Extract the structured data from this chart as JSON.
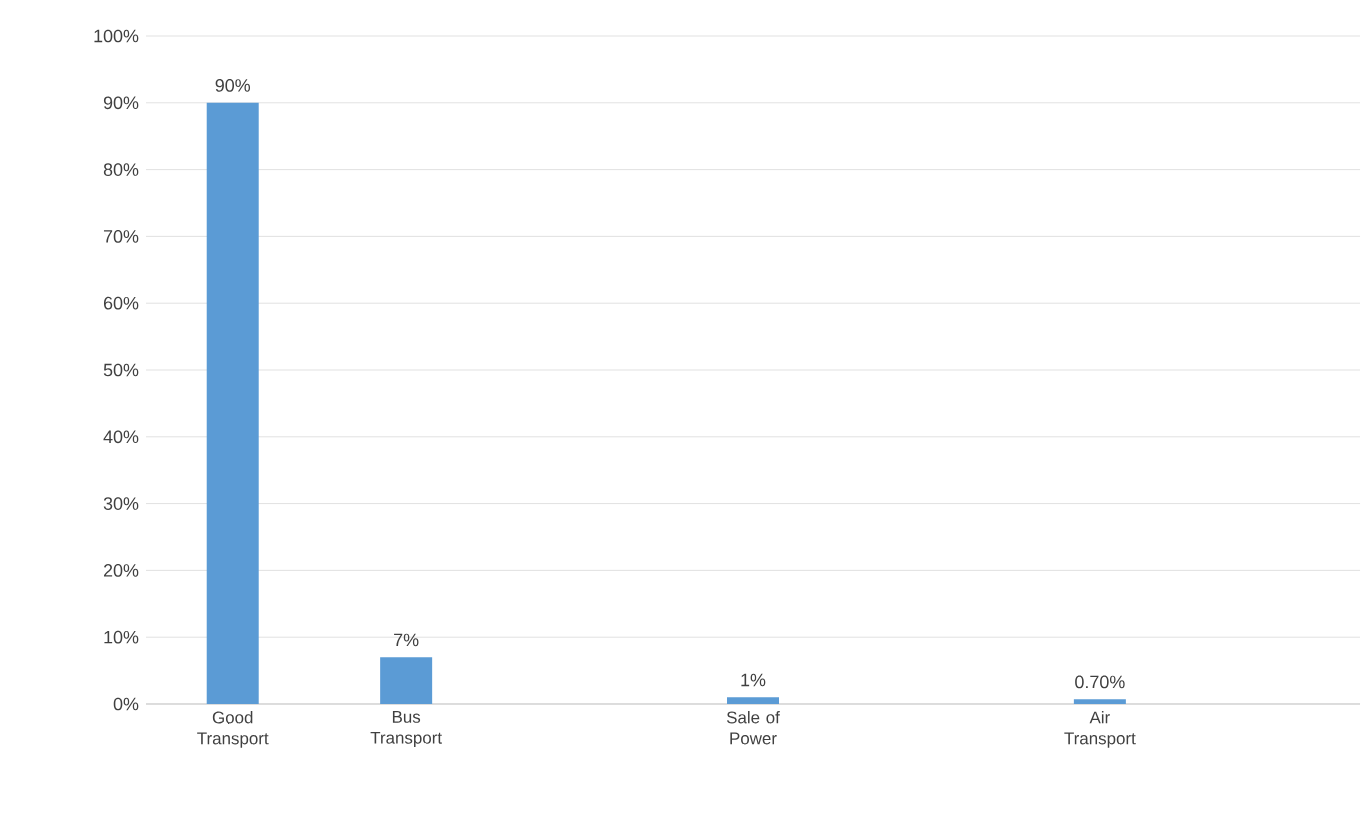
{
  "chart_data": {
    "type": "bar",
    "categories": [
      "Good Transport",
      "Bus Transport",
      null,
      "Sale of Power",
      null,
      "Air Transport",
      null
    ],
    "values": [
      90,
      7,
      null,
      1,
      null,
      0.7,
      null
    ],
    "value_labels": [
      "90%",
      "7%",
      null,
      "1%",
      null,
      "0.70%",
      null
    ],
    "color": "#5b9bd5",
    "ylim": [
      0,
      100
    ],
    "yticks": [
      {
        "value": 0,
        "label": "0%"
      },
      {
        "value": 10,
        "label": "10%"
      },
      {
        "value": 20,
        "label": "20%"
      },
      {
        "value": 30,
        "label": "30%"
      },
      {
        "value": 40,
        "label": "40%"
      },
      {
        "value": 50,
        "label": "50%"
      },
      {
        "value": 60,
        "label": "60%"
      },
      {
        "value": 70,
        "label": "70%"
      },
      {
        "value": 80,
        "label": "80%"
      },
      {
        "value": 90,
        "label": "90%"
      },
      {
        "value": 100,
        "label": "100%"
      }
    ],
    "grid": "y"
  }
}
